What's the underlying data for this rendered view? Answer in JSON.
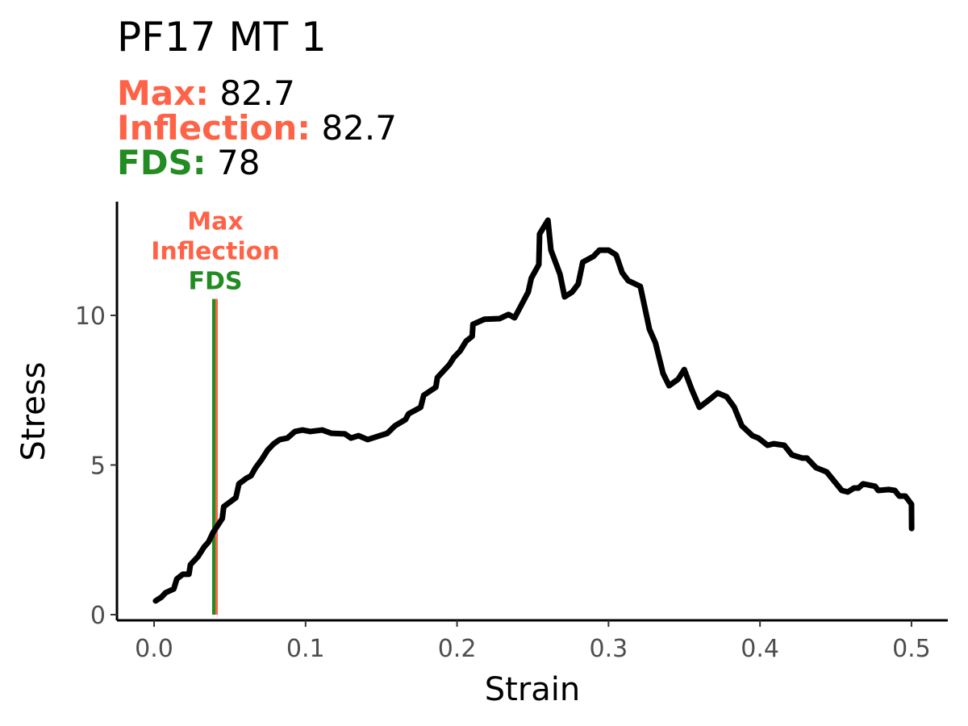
{
  "chart_data": {
    "type": "line",
    "title": "PF17 MT 1",
    "stats": [
      {
        "label": "Max:",
        "value": 82.7,
        "color": "#ff6347"
      },
      {
        "label": "Inflection:",
        "value": 82.7,
        "color": "#ff6347"
      },
      {
        "label": "FDS:",
        "value": 78,
        "color": "#228b22"
      }
    ],
    "x_label": "Strain",
    "y_label": "Stress",
    "xlim": [
      -0.0245,
      0.524
    ],
    "ylim": [
      -0.19,
      13.8
    ],
    "xticks": [
      {
        "value": 0,
        "label": "0.0"
      },
      0.1,
      0.2,
      0.3,
      0.4,
      0.5
    ],
    "yticks": [
      0,
      5,
      10
    ],
    "grid": false,
    "vlines": [
      {
        "name": "Max",
        "x": 0.041,
        "ymin": 0,
        "ymax": 10.55,
        "color": "#ff6347"
      },
      {
        "name": "Inflection",
        "x": 0.041,
        "ymin": 0,
        "ymax": 10.55,
        "color": "#ff6347"
      },
      {
        "name": "FDS",
        "x": 0.0394,
        "ymin": 0,
        "ymax": 10.55,
        "color": "#228b22"
      }
    ],
    "series": [
      {
        "color": "#000000",
        "x": [
          0.001,
          0.005,
          0.0075,
          0.013,
          0.015,
          0.019,
          0.023,
          0.024,
          0.029,
          0.033,
          0.036,
          0.039,
          0.045,
          0.046,
          0.054,
          0.056,
          0.061,
          0.064,
          0.067,
          0.071,
          0.075,
          0.079,
          0.083,
          0.088,
          0.093,
          0.098,
          0.103,
          0.111,
          0.117,
          0.126,
          0.13,
          0.135,
          0.141,
          0.154,
          0.159,
          0.166,
          0.168,
          0.176,
          0.178,
          0.186,
          0.187,
          0.195,
          0.198,
          0.202,
          0.206,
          0.21,
          0.2105,
          0.218,
          0.228,
          0.234,
          0.238,
          0.247,
          0.249,
          0.254,
          0.2545,
          0.26,
          0.262,
          0.268,
          0.271,
          0.276,
          0.28,
          0.283,
          0.29,
          0.294,
          0.3,
          0.305,
          0.309,
          0.313,
          0.321,
          0.327,
          0.331,
          0.336,
          0.34,
          0.346,
          0.35,
          0.355,
          0.36,
          0.367,
          0.372,
          0.378,
          0.383,
          0.388,
          0.395,
          0.399,
          0.405,
          0.409,
          0.416,
          0.421,
          0.428,
          0.431,
          0.437,
          0.444,
          0.454,
          0.458,
          0.462,
          0.465,
          0.468,
          0.476,
          0.478,
          0.485,
          0.489,
          0.492,
          0.496,
          0.5,
          0.5001
        ],
        "values": [
          0.46,
          0.59,
          0.73,
          0.86,
          1.19,
          1.35,
          1.35,
          1.67,
          1.94,
          2.26,
          2.43,
          2.75,
          3.21,
          3.61,
          3.91,
          4.37,
          4.56,
          4.64,
          4.91,
          5.18,
          5.5,
          5.71,
          5.85,
          5.9,
          6.12,
          6.17,
          6.12,
          6.17,
          6.06,
          6.04,
          5.9,
          5.98,
          5.85,
          6.06,
          6.31,
          6.52,
          6.71,
          6.93,
          7.33,
          7.6,
          7.92,
          8.36,
          8.6,
          8.81,
          9.14,
          9.3,
          9.7,
          9.87,
          9.89,
          10.03,
          9.92,
          10.78,
          11.24,
          11.7,
          12.72,
          13.18,
          12.18,
          11.37,
          10.62,
          10.78,
          11.05,
          11.78,
          11.97,
          12.18,
          12.18,
          12.02,
          11.43,
          11.16,
          10.97,
          9.54,
          9.08,
          8.06,
          7.65,
          7.87,
          8.19,
          7.52,
          6.93,
          7.2,
          7.41,
          7.28,
          6.93,
          6.31,
          5.98,
          5.9,
          5.66,
          5.71,
          5.66,
          5.34,
          5.23,
          5.23,
          4.91,
          4.77,
          4.15,
          4.1,
          4.23,
          4.23,
          4.37,
          4.29,
          4.15,
          4.18,
          4.15,
          3.96,
          3.96,
          3.69,
          2.88
        ]
      }
    ]
  }
}
